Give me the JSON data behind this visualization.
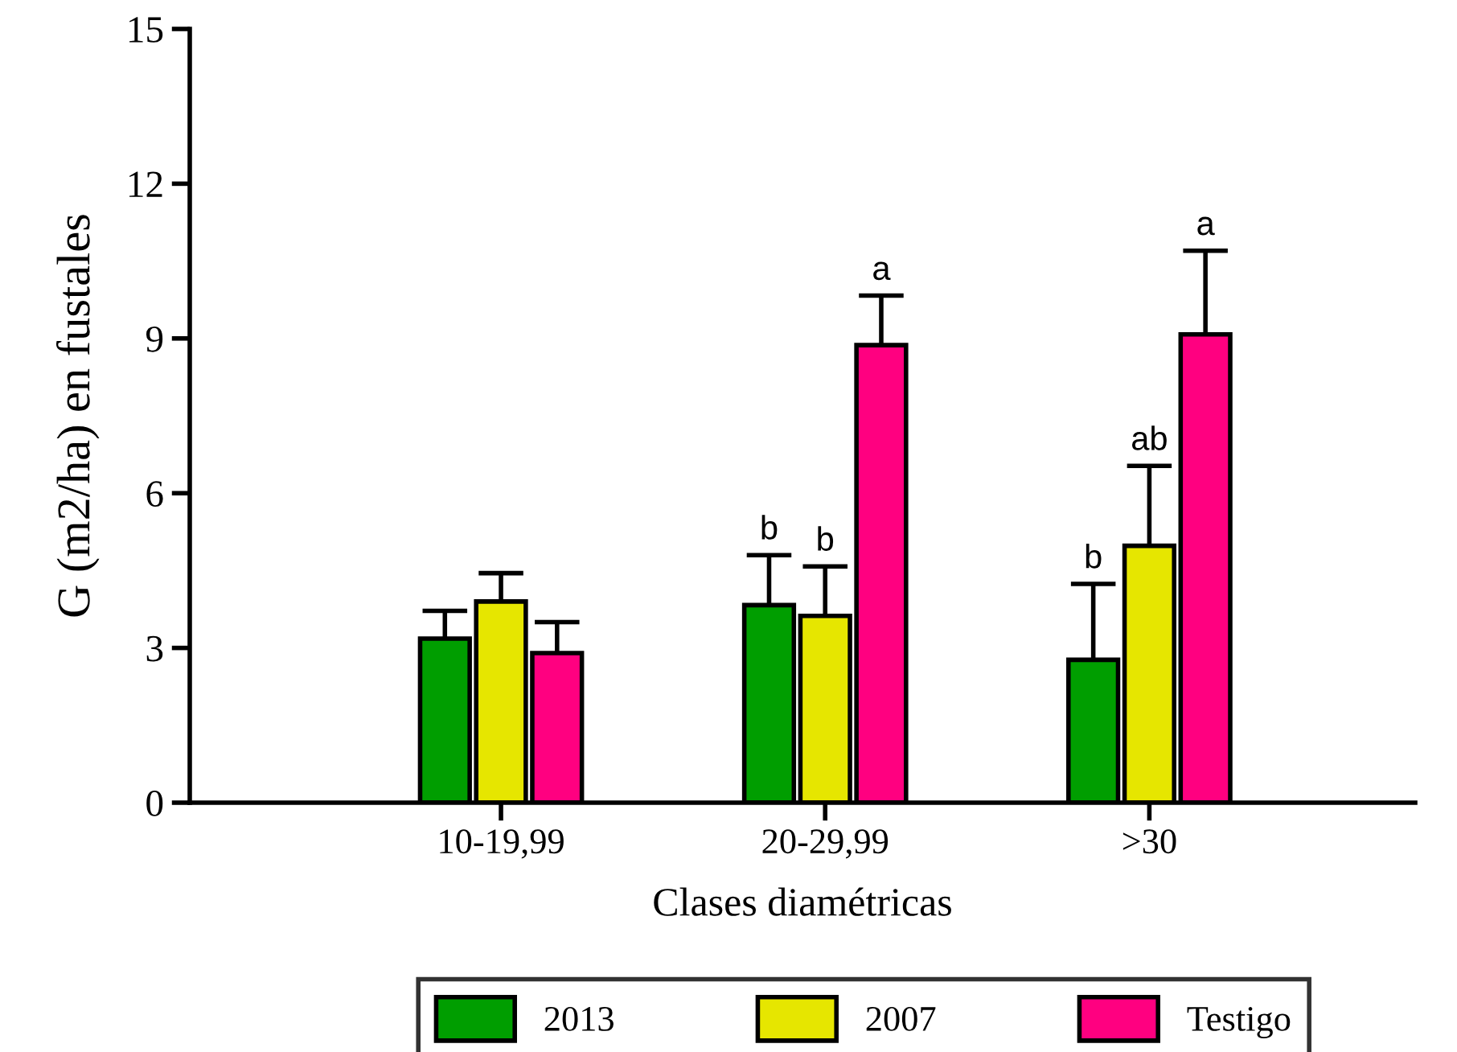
{
  "chart_data": {
    "type": "bar",
    "xlabel": "Clases diamétricas",
    "ylabel": "G (m2/ha) en fustales",
    "categories": [
      "10-19,99",
      "20-29,99",
      ">30"
    ],
    "series": [
      {
        "name": "2013",
        "color": "#009e00",
        "values": [
          3.18,
          3.83,
          2.77
        ],
        "errors": [
          [
            3.18,
            3.72
          ],
          [
            3.83,
            4.8
          ],
          [
            2.77,
            4.24
          ]
        ],
        "value_labels": [
          null,
          "b",
          "b"
        ]
      },
      {
        "name": "2007",
        "color": "#e6e600",
        "values": [
          3.9,
          3.62,
          4.98
        ],
        "errors": [
          [
            3.9,
            4.45
          ],
          [
            3.62,
            4.58
          ],
          [
            4.98,
            6.53
          ]
        ],
        "value_labels": [
          null,
          "b",
          "ab"
        ]
      },
      {
        "name": "Testigo",
        "color": "#ff0080",
        "values": [
          2.9,
          8.87,
          9.08
        ],
        "errors": [
          [
            2.9,
            3.5
          ],
          [
            8.87,
            9.83
          ],
          [
            9.08,
            10.7
          ]
        ],
        "value_labels": [
          null,
          "a",
          "a"
        ]
      }
    ],
    "ylim": [
      0,
      15
    ],
    "yticks": [
      0,
      3,
      6,
      9,
      12,
      15
    ],
    "grid": false,
    "legend": "bottom"
  }
}
